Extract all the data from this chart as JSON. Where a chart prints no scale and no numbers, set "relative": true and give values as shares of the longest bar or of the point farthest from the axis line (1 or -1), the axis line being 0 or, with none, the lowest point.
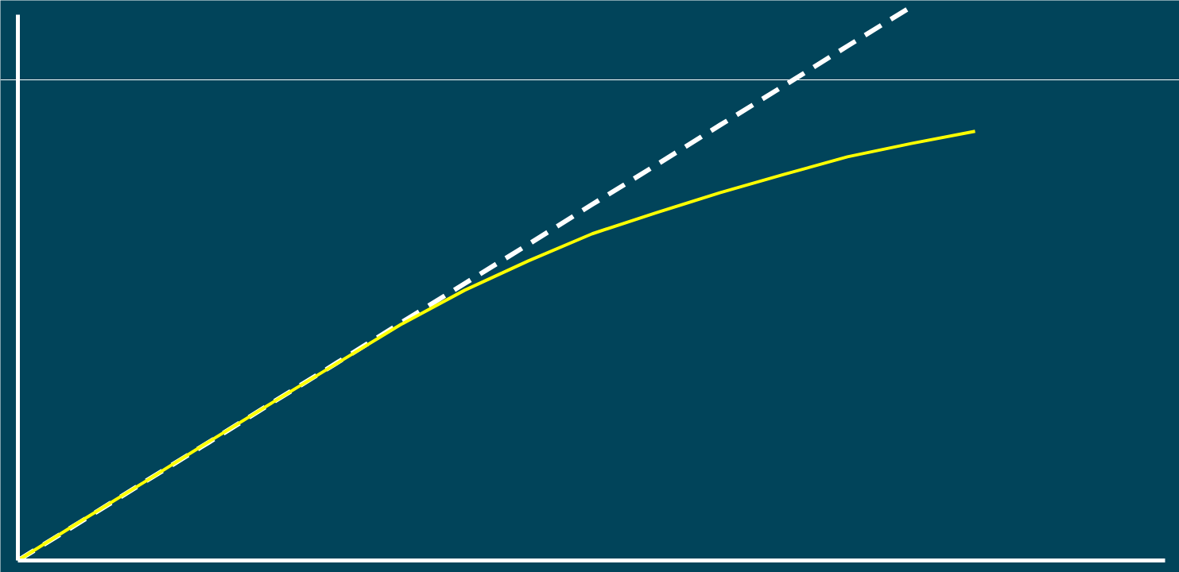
{
  "chart_data": {
    "type": "line",
    "relative": true,
    "categories": [
      null,
      null,
      null,
      null,
      null,
      null,
      null,
      null,
      null,
      null,
      null,
      null,
      null,
      null,
      null,
      null
    ],
    "series": [
      {
        "color": "#ffffff",
        "line_style": "dashed",
        "values": [
          0,
          0.071,
          0.143,
          0.214,
          0.286,
          0.357,
          0.429,
          0.5,
          0.571,
          0.643,
          0.714,
          0.786,
          0.857,
          0.929,
          1.0,
          null
        ]
      },
      {
        "color": "#ffff00",
        "line_style": "solid",
        "values": [
          0,
          0.072,
          0.143,
          0.215,
          0.286,
          0.356,
          0.426,
          0.488,
          0.541,
          0.59,
          0.628,
          0.664,
          0.697,
          0.729,
          0.753,
          0.775
        ]
      }
    ],
    "ref_lines": [
      {
        "axis": "y",
        "value": 0.868,
        "color": "#ffffff"
      }
    ],
    "grid": false,
    "tick_labels": false,
    "marker": "none"
  }
}
